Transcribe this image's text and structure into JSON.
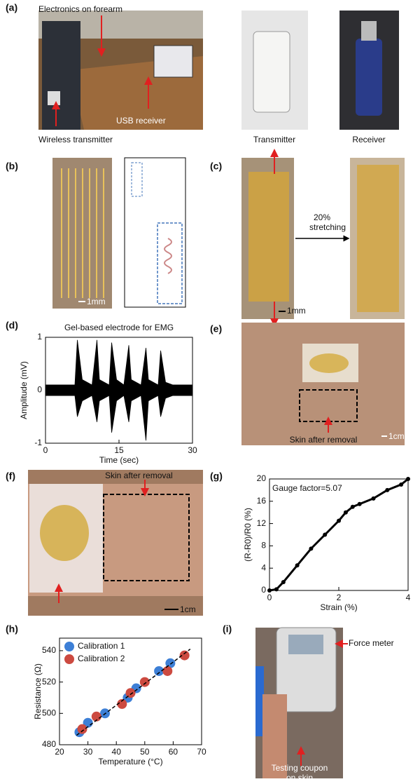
{
  "panel_labels": [
    "(a)",
    "(b)",
    "(c)",
    "(d)",
    "(e)",
    "(f)",
    "(g)",
    "(h)",
    "(i)"
  ],
  "a": {
    "annotations": [
      "Electronics on forearm",
      "USB receiver",
      "Wireless transmitter"
    ],
    "captions": [
      "Transmitter",
      "Receiver"
    ]
  },
  "b": {
    "scale_bar": "1mm"
  },
  "c": {
    "arrow_label": [
      "20%",
      "stretching"
    ],
    "scale_bar": "1mm"
  },
  "d": {
    "chart_data": {
      "type": "area",
      "title": "Gel-based electrode for EMG",
      "xlabel": "Time (sec)",
      "ylabel": "Amplitude (mV)",
      "x": [
        0,
        6,
        6.5,
        7.5,
        9.5,
        10.5,
        11,
        13,
        13.5,
        14.5,
        16,
        17,
        17.5,
        19.5,
        20.5,
        21,
        23,
        23.5,
        24.5,
        26,
        30
      ],
      "upper": [
        0.1,
        0.1,
        0.95,
        0.2,
        0.1,
        0.95,
        0.2,
        0.1,
        0.9,
        0.2,
        0.1,
        0.85,
        0.2,
        0.1,
        0.8,
        0.2,
        0.1,
        0.75,
        0.15,
        0.1,
        0.1
      ],
      "lower": [
        -0.1,
        -0.1,
        -0.5,
        -0.2,
        -0.1,
        -0.6,
        -0.2,
        -0.1,
        -0.8,
        -0.2,
        -0.1,
        -0.6,
        -0.2,
        -0.1,
        -0.95,
        -0.2,
        -0.1,
        -0.5,
        -0.15,
        -0.1,
        -0.1
      ],
      "color": "#000000",
      "xlim": [
        0,
        30
      ],
      "xticks": [
        0,
        15,
        30
      ],
      "ylim": [
        -1,
        1
      ],
      "yticks": [
        -1,
        0,
        1
      ]
    }
  },
  "e": {
    "annotation": "Skin after removal",
    "scale_bar": "1cm"
  },
  "f": {
    "annotation": "Skin after removal",
    "scale_bar": "1cm"
  },
  "g": {
    "chart_data": {
      "type": "line",
      "annotation": "Gauge factor=5.07",
      "xlabel": "Strain (%)",
      "ylabel": "(R-R0)/R0 (%)",
      "x": [
        0,
        0.2,
        0.4,
        0.8,
        1.2,
        1.6,
        2,
        2.2,
        2.4,
        2.6,
        3,
        3.4,
        3.8,
        4
      ],
      "values": [
        0,
        0.2,
        1.5,
        4.5,
        7.5,
        10,
        12.5,
        14,
        15,
        15.5,
        16.5,
        18,
        19,
        20
      ],
      "color": "#000000",
      "xlim": [
        0,
        4
      ],
      "xticks": [
        0,
        2,
        4
      ],
      "ylim": [
        0,
        20
      ],
      "yticks": [
        0,
        4,
        8,
        12,
        16,
        20
      ]
    }
  },
  "h": {
    "chart_data": {
      "type": "scatter",
      "xlabel": "Temperature (°C)",
      "ylabel": "Resistance (Ω)",
      "legend": "upper left",
      "series": [
        {
          "name": "Calibration 1",
          "color": "#3d7fd6",
          "x": [
            27,
            30,
            36,
            44,
            47,
            55,
            59
          ],
          "values": [
            488,
            494,
            500,
            510,
            516,
            527,
            532
          ]
        },
        {
          "name": "Calibration 2",
          "color": "#cc4a40",
          "x": [
            28,
            33,
            42,
            45,
            50,
            58,
            64
          ],
          "values": [
            490,
            498,
            506,
            513,
            520,
            527,
            537
          ]
        }
      ],
      "fit": {
        "x": [
          26,
          66
        ],
        "values": [
          486,
          541
        ]
      },
      "xlim": [
        20,
        70
      ],
      "xticks": [
        20,
        30,
        40,
        50,
        60,
        70
      ],
      "ylim": [
        480,
        548
      ],
      "yticks": [
        480,
        500,
        520,
        540
      ]
    }
  },
  "i": {
    "annotation": "Force meter",
    "caption": [
      "Testing coupon",
      "on skin"
    ]
  }
}
